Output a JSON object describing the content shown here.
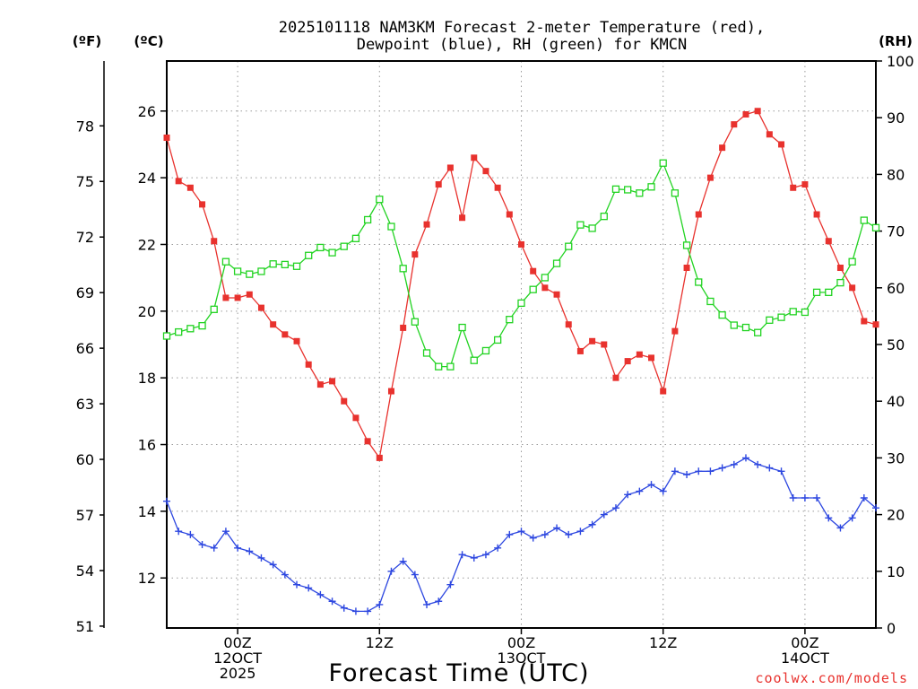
{
  "chart_data": {
    "type": "line",
    "title": [
      "2025101118 NAM3KM Forecast 2-meter Temperature (red),",
      "Dewpoint (blue), RH (green) for KMCN"
    ],
    "xlabel": "Forecast Time (UTC)",
    "credit": "coolwx.com/models",
    "units": {
      "f": "(ºF)",
      "c": "(ºC)",
      "rh": "(RH)"
    },
    "ylim_c": [
      10.5,
      27.5
    ],
    "ylim_rh": [
      0,
      100
    ],
    "x_range_hours": [
      -6,
      54
    ],
    "c_ticks": [
      "12",
      "14",
      "16",
      "18",
      "20",
      "22",
      "24",
      "26"
    ],
    "f_ticks": [
      "51",
      "54",
      "57",
      "60",
      "63",
      "66",
      "69",
      "72",
      "75",
      "78"
    ],
    "rh_ticks": [
      "0",
      "10",
      "20",
      "30",
      "40",
      "50",
      "60",
      "70",
      "80",
      "90",
      "100"
    ],
    "x_ticks": [
      {
        "hour": 0,
        "lines": [
          "00Z",
          "12OCT",
          "2025"
        ]
      },
      {
        "hour": 12,
        "lines": [
          "12Z"
        ]
      },
      {
        "hour": 24,
        "lines": [
          "00Z",
          "13OCT"
        ]
      },
      {
        "hour": 36,
        "lines": [
          "12Z"
        ]
      },
      {
        "hour": 48,
        "lines": [
          "00Z",
          "14OCT"
        ]
      }
    ],
    "series": [
      {
        "name": "2-meter Temperature",
        "unit": "C",
        "color": "#e8322e",
        "marker": "filled-square",
        "x": [
          -6,
          -5,
          -4,
          -3,
          -2,
          -1,
          0,
          1,
          2,
          3,
          4,
          5,
          6,
          7,
          8,
          9,
          10,
          11,
          12,
          13,
          14,
          15,
          16,
          17,
          18,
          19,
          20,
          21,
          22,
          23,
          24,
          25,
          26,
          27,
          28,
          29,
          30,
          31,
          32,
          33,
          34,
          35,
          36,
          37,
          38,
          39,
          40,
          41,
          42,
          43,
          44,
          45,
          46,
          47,
          48,
          49,
          50,
          51,
          52,
          53,
          54
        ],
        "values": [
          25.2,
          23.9,
          23.7,
          23.2,
          22.1,
          20.4,
          20.4,
          20.5,
          20.1,
          19.6,
          19.3,
          19.1,
          18.4,
          17.8,
          17.9,
          17.3,
          16.8,
          16.1,
          15.6,
          17.6,
          19.5,
          21.7,
          22.6,
          23.8,
          24.3,
          22.8,
          24.6,
          24.2,
          23.7,
          22.9,
          22.0,
          21.2,
          20.7,
          20.5,
          19.6,
          18.8,
          19.1,
          19.0,
          18.0,
          18.5,
          18.7,
          18.6,
          17.6,
          19.4,
          21.3,
          22.9,
          24.0,
          24.9,
          25.6,
          25.9,
          26.0,
          25.3,
          25.0,
          23.7,
          23.8,
          22.9,
          22.1,
          21.3,
          20.7,
          19.7,
          19.6
        ]
      },
      {
        "name": "Dewpoint",
        "unit": "C",
        "color": "#2d47e0",
        "marker": "plus",
        "x": [
          -6,
          -5,
          -4,
          -3,
          -2,
          -1,
          0,
          1,
          2,
          3,
          4,
          5,
          6,
          7,
          8,
          9,
          10,
          11,
          12,
          13,
          14,
          15,
          16,
          17,
          18,
          19,
          20,
          21,
          22,
          23,
          24,
          25,
          26,
          27,
          28,
          29,
          30,
          31,
          32,
          33,
          34,
          35,
          36,
          37,
          38,
          39,
          40,
          41,
          42,
          43,
          44,
          45,
          46,
          47,
          48,
          49,
          50,
          51,
          52,
          53,
          54
        ],
        "values": [
          14.3,
          13.4,
          13.3,
          13.0,
          12.9,
          13.4,
          12.9,
          12.8,
          12.6,
          12.4,
          12.1,
          11.8,
          11.7,
          11.5,
          11.3,
          11.1,
          11.0,
          11.0,
          11.2,
          12.2,
          12.5,
          12.1,
          11.2,
          11.3,
          11.8,
          12.7,
          12.6,
          12.7,
          12.9,
          13.3,
          13.4,
          13.2,
          13.3,
          13.5,
          13.3,
          13.4,
          13.6,
          13.9,
          14.1,
          14.5,
          14.6,
          14.8,
          14.6,
          15.2,
          15.1,
          15.2,
          15.2,
          15.3,
          15.4,
          15.6,
          15.4,
          15.3,
          15.2,
          14.4,
          14.4,
          14.4,
          13.8,
          13.5,
          13.8,
          14.4,
          14.1
        ]
      },
      {
        "name": "Relative Humidity",
        "unit": "RH",
        "color": "#22d322",
        "marker": "open-square",
        "x": [
          -6,
          -5,
          -4,
          -3,
          -2,
          -1,
          0,
          1,
          2,
          3,
          4,
          5,
          6,
          7,
          8,
          9,
          10,
          11,
          12,
          13,
          14,
          15,
          16,
          17,
          18,
          19,
          20,
          21,
          22,
          23,
          24,
          25,
          26,
          27,
          28,
          29,
          30,
          31,
          32,
          33,
          34,
          35,
          36,
          37,
          38,
          39,
          40,
          41,
          42,
          43,
          44,
          45,
          46,
          47,
          48,
          49,
          50,
          51,
          52,
          53,
          54
        ],
        "values": [
          51.5,
          52.2,
          52.8,
          53.3,
          56.2,
          64.6,
          62.9,
          62.4,
          62.9,
          64.2,
          64.1,
          63.8,
          65.7,
          67.1,
          66.2,
          67.3,
          68.7,
          72.0,
          75.6,
          70.8,
          63.4,
          54.0,
          48.5,
          46.1,
          46.1,
          53.0,
          47.2,
          48.9,
          50.8,
          54.4,
          57.3,
          59.7,
          61.8,
          64.3,
          67.3,
          71.1,
          70.5,
          72.6,
          77.4,
          77.3,
          76.7,
          77.8,
          82.0,
          76.7,
          67.5,
          61.0,
          57.6,
          55.2,
          53.4,
          53.0,
          52.1,
          54.3,
          54.8,
          55.8,
          55.7,
          59.2,
          59.2,
          60.9,
          64.6,
          71.9,
          70.6
        ]
      }
    ]
  }
}
